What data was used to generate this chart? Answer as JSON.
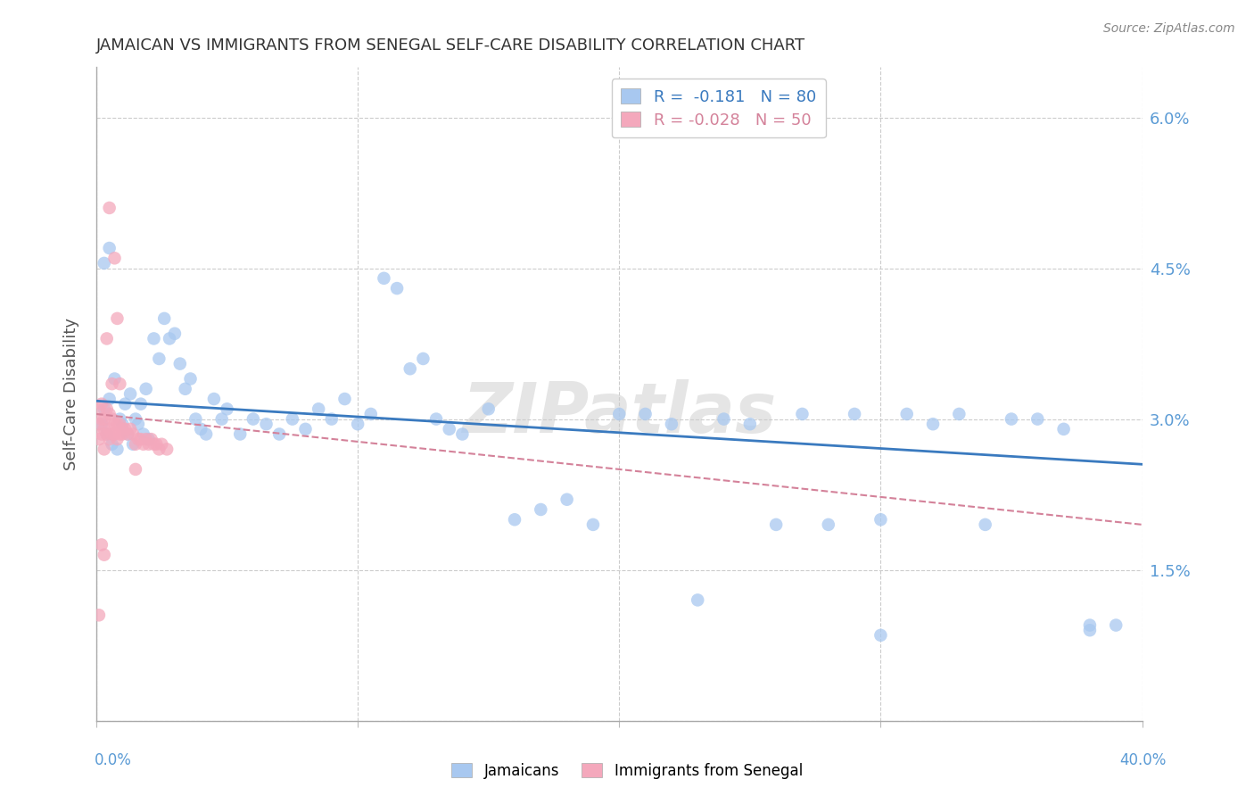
{
  "title": "JAMAICAN VS IMMIGRANTS FROM SENEGAL SELF-CARE DISABILITY CORRELATION CHART",
  "source": "Source: ZipAtlas.com",
  "ylabel": "Self-Care Disability",
  "y_ticks": [
    0.0,
    0.015,
    0.03,
    0.045,
    0.06
  ],
  "y_tick_labels": [
    "",
    "1.5%",
    "3.0%",
    "4.5%",
    "6.0%"
  ],
  "x_min": 0.0,
  "x_max": 0.4,
  "y_min": 0.0,
  "y_max": 0.065,
  "watermark": "ZIPatlas",
  "blue_scatter_color": "#a8c8f0",
  "pink_scatter_color": "#f4a8bc",
  "blue_line_color": "#3a7abf",
  "pink_line_color": "#d4829a",
  "background_color": "#ffffff",
  "grid_color": "#cccccc",
  "title_color": "#333333",
  "tick_label_color": "#5b9bd5",
  "ylabel_color": "#555555",
  "source_color": "#888888",
  "jamaicans_x": [
    0.002,
    0.003,
    0.004,
    0.005,
    0.006,
    0.007,
    0.008,
    0.009,
    0.01,
    0.011,
    0.012,
    0.013,
    0.014,
    0.015,
    0.016,
    0.017,
    0.018,
    0.019,
    0.02,
    0.022,
    0.024,
    0.026,
    0.028,
    0.03,
    0.032,
    0.034,
    0.036,
    0.038,
    0.04,
    0.042,
    0.045,
    0.048,
    0.05,
    0.055,
    0.06,
    0.065,
    0.07,
    0.075,
    0.08,
    0.085,
    0.09,
    0.095,
    0.1,
    0.105,
    0.11,
    0.115,
    0.12,
    0.125,
    0.13,
    0.135,
    0.14,
    0.15,
    0.16,
    0.17,
    0.18,
    0.19,
    0.2,
    0.21,
    0.22,
    0.23,
    0.24,
    0.25,
    0.26,
    0.27,
    0.28,
    0.29,
    0.3,
    0.31,
    0.32,
    0.33,
    0.34,
    0.35,
    0.36,
    0.37,
    0.38,
    0.39,
    0.003,
    0.005,
    0.38,
    0.3
  ],
  "jamaicans_y": [
    0.0295,
    0.031,
    0.0285,
    0.032,
    0.0275,
    0.034,
    0.027,
    0.03,
    0.0295,
    0.0315,
    0.0285,
    0.0325,
    0.0275,
    0.03,
    0.0295,
    0.0315,
    0.0285,
    0.033,
    0.028,
    0.038,
    0.036,
    0.04,
    0.038,
    0.0385,
    0.0355,
    0.033,
    0.034,
    0.03,
    0.029,
    0.0285,
    0.032,
    0.03,
    0.031,
    0.0285,
    0.03,
    0.0295,
    0.0285,
    0.03,
    0.029,
    0.031,
    0.03,
    0.032,
    0.0295,
    0.0305,
    0.044,
    0.043,
    0.035,
    0.036,
    0.03,
    0.029,
    0.0285,
    0.031,
    0.02,
    0.021,
    0.022,
    0.0195,
    0.0305,
    0.0305,
    0.0295,
    0.012,
    0.03,
    0.0295,
    0.0195,
    0.0305,
    0.0195,
    0.0305,
    0.02,
    0.0305,
    0.0295,
    0.0305,
    0.0195,
    0.03,
    0.03,
    0.029,
    0.009,
    0.0095,
    0.0455,
    0.047,
    0.0095,
    0.0085
  ],
  "senegal_x": [
    0.001,
    0.001,
    0.001,
    0.002,
    0.002,
    0.002,
    0.003,
    0.003,
    0.003,
    0.004,
    0.004,
    0.005,
    0.005,
    0.005,
    0.006,
    0.006,
    0.007,
    0.007,
    0.008,
    0.008,
    0.009,
    0.009,
    0.01,
    0.01,
    0.011,
    0.012,
    0.013,
    0.014,
    0.015,
    0.016,
    0.017,
    0.018,
    0.019,
    0.02,
    0.021,
    0.022,
    0.023,
    0.024,
    0.025,
    0.027,
    0.005,
    0.007,
    0.008,
    0.004,
    0.006,
    0.009,
    0.002,
    0.003,
    0.001,
    0.015
  ],
  "senegal_y": [
    0.0295,
    0.031,
    0.028,
    0.03,
    0.0285,
    0.0315,
    0.027,
    0.03,
    0.029,
    0.031,
    0.0285,
    0.0305,
    0.028,
    0.029,
    0.03,
    0.0285,
    0.0295,
    0.0285,
    0.0295,
    0.028,
    0.0295,
    0.0285,
    0.029,
    0.0285,
    0.029,
    0.0285,
    0.029,
    0.0285,
    0.0275,
    0.028,
    0.028,
    0.0275,
    0.028,
    0.0275,
    0.028,
    0.0275,
    0.0275,
    0.027,
    0.0275,
    0.027,
    0.051,
    0.046,
    0.04,
    0.038,
    0.0335,
    0.0335,
    0.0175,
    0.0165,
    0.0105,
    0.025
  ],
  "jam_trend_x": [
    0.0,
    0.4
  ],
  "jam_trend_y": [
    0.0318,
    0.0255
  ],
  "sen_trend_x": [
    0.0,
    0.4
  ],
  "sen_trend_y": [
    0.0305,
    0.0195
  ]
}
